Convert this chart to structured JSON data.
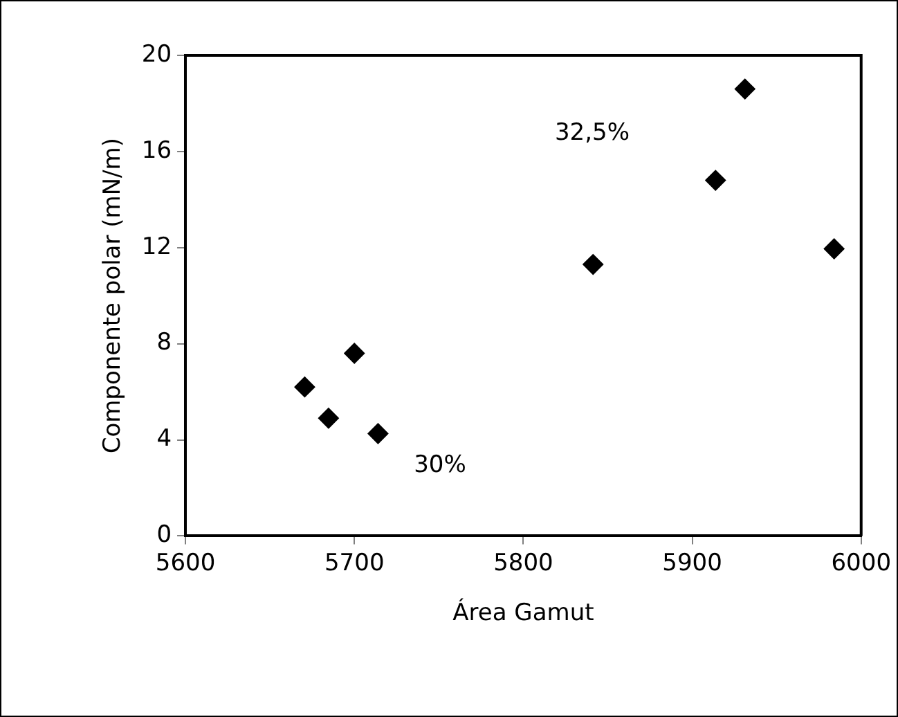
{
  "chart_data": {
    "type": "scatter",
    "xlabel": "Área Gamut",
    "ylabel": "Componente polar (mN/m)",
    "x": [
      5670.6,
      5684.7,
      5700,
      5714,
      5841.3,
      5913.8,
      5931.2,
      5984
    ],
    "values": [
      6.2,
      4.9,
      7.6,
      4.26,
      11.3,
      14.8,
      18.6,
      11.95
    ],
    "color": "#000000",
    "marker": "diamond",
    "grid": false,
    "legend": false,
    "xlim": [
      5600,
      6000
    ],
    "xticks": [
      5600,
      5700,
      5800,
      5900,
      6000
    ],
    "ylim": [
      0,
      20
    ],
    "yticks": [
      0,
      4,
      8,
      12,
      16,
      20
    ],
    "annotations": [
      "30%",
      "32,5%"
    ]
  }
}
